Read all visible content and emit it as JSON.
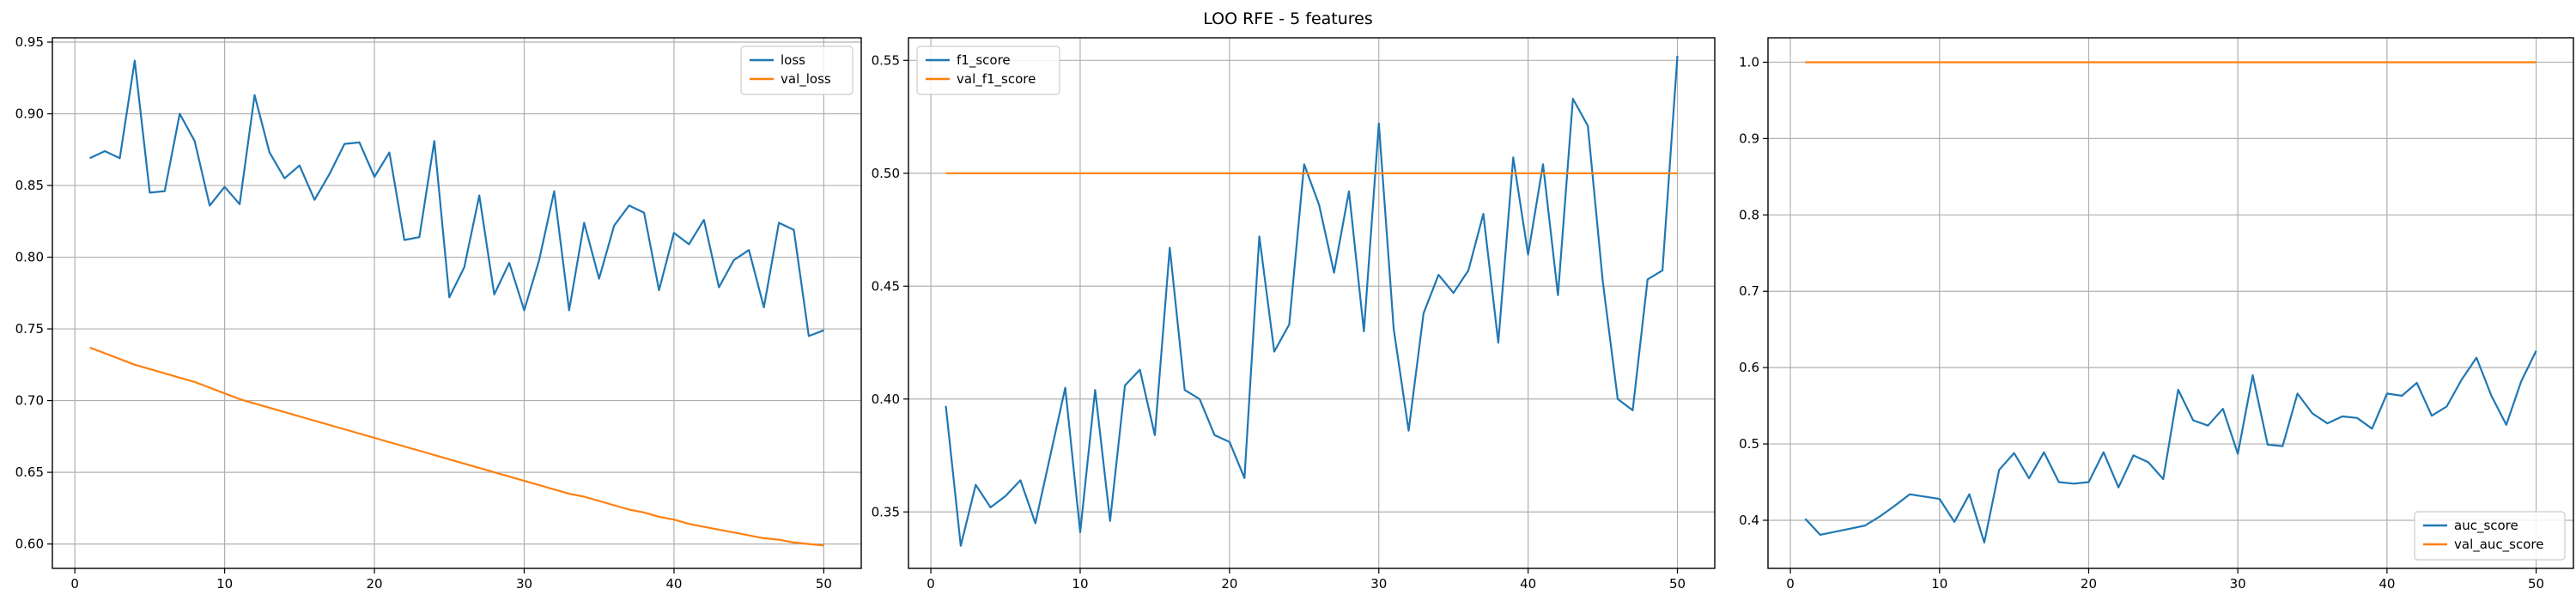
{
  "suptitle": "LOO RFE - 5 features",
  "colors": {
    "blue": "#1f77b4",
    "orange": "#ff7f0e",
    "grid": "#b0b0b0"
  },
  "chart_data": [
    {
      "type": "line",
      "title": "",
      "xlabel": "",
      "ylabel": "",
      "xlim": [
        -1.5,
        52.5
      ],
      "ylim": [
        0.583,
        0.953
      ],
      "xticks": [
        0,
        10,
        20,
        30,
        40,
        50
      ],
      "yticks": [
        0.6,
        0.65,
        0.7,
        0.75,
        0.8,
        0.85,
        0.9,
        0.95
      ],
      "ytick_labels": [
        "0.60",
        "0.65",
        "0.70",
        "0.75",
        "0.80",
        "0.85",
        "0.90",
        "0.95"
      ],
      "grid": true,
      "legend_position": "upper right",
      "x": [
        1,
        2,
        3,
        4,
        5,
        6,
        7,
        8,
        9,
        10,
        11,
        12,
        13,
        14,
        15,
        16,
        17,
        18,
        19,
        20,
        21,
        22,
        23,
        24,
        25,
        26,
        27,
        28,
        29,
        30,
        31,
        32,
        33,
        34,
        35,
        36,
        37,
        38,
        39,
        40,
        41,
        42,
        43,
        44,
        45,
        46,
        47,
        48,
        49,
        50
      ],
      "series": [
        {
          "name": "loss",
          "color": "#1f77b4",
          "values": [
            0.869,
            0.874,
            0.869,
            0.937,
            0.845,
            0.846,
            0.9,
            0.881,
            0.836,
            0.849,
            0.837,
            0.913,
            0.873,
            0.855,
            0.864,
            0.84,
            0.858,
            0.879,
            0.88,
            0.856,
            0.873,
            0.812,
            0.814,
            0.881,
            0.772,
            0.793,
            0.843,
            0.774,
            0.796,
            0.763,
            0.798,
            0.846,
            0.763,
            0.824,
            0.785,
            0.822,
            0.836,
            0.831,
            0.777,
            0.817,
            0.809,
            0.826,
            0.779,
            0.798,
            0.805,
            0.765,
            0.824,
            0.819,
            0.745,
            0.749
          ]
        },
        {
          "name": "val_loss",
          "color": "#ff7f0e",
          "values": [
            0.737,
            0.733,
            0.729,
            0.725,
            0.722,
            0.719,
            0.716,
            0.713,
            0.709,
            0.705,
            0.701,
            0.698,
            0.695,
            0.692,
            0.689,
            0.686,
            0.683,
            0.68,
            0.677,
            0.674,
            0.671,
            0.668,
            0.665,
            0.662,
            0.659,
            0.656,
            0.653,
            0.65,
            0.647,
            0.644,
            0.641,
            0.638,
            0.635,
            0.633,
            0.63,
            0.627,
            0.624,
            0.622,
            0.619,
            0.617,
            0.614,
            0.612,
            0.61,
            0.608,
            0.606,
            0.604,
            0.603,
            0.601,
            0.6,
            0.599
          ]
        }
      ]
    },
    {
      "type": "line",
      "title": "",
      "xlabel": "",
      "ylabel": "",
      "xlim": [
        -1.5,
        52.5
      ],
      "ylim": [
        0.325,
        0.56
      ],
      "xticks": [
        0,
        10,
        20,
        30,
        40,
        50
      ],
      "yticks": [
        0.35,
        0.4,
        0.45,
        0.5,
        0.55
      ],
      "ytick_labels": [
        "0.35",
        "0.40",
        "0.45",
        "0.50",
        "0.55"
      ],
      "grid": true,
      "legend_position": "upper left",
      "x": [
        1,
        2,
        3,
        4,
        5,
        6,
        7,
        8,
        9,
        10,
        11,
        12,
        13,
        14,
        15,
        16,
        17,
        18,
        19,
        20,
        21,
        22,
        23,
        24,
        25,
        26,
        27,
        28,
        29,
        30,
        31,
        32,
        33,
        34,
        35,
        36,
        37,
        38,
        39,
        40,
        41,
        42,
        43,
        44,
        45,
        46,
        47,
        48,
        49,
        50
      ],
      "series": [
        {
          "name": "f1_score",
          "color": "#1f77b4",
          "values": [
            0.397,
            0.335,
            0.362,
            0.352,
            0.357,
            0.364,
            0.345,
            0.375,
            0.405,
            0.341,
            0.404,
            0.346,
            0.406,
            0.413,
            0.384,
            0.467,
            0.404,
            0.4,
            0.384,
            0.381,
            0.365,
            0.472,
            0.421,
            0.433,
            0.504,
            0.486,
            0.456,
            0.492,
            0.43,
            0.522,
            0.431,
            0.386,
            0.438,
            0.455,
            0.447,
            0.457,
            0.482,
            0.425,
            0.507,
            0.464,
            0.504,
            0.446,
            0.533,
            0.521,
            0.452,
            0.4,
            0.395,
            0.453,
            0.457,
            0.552
          ]
        },
        {
          "name": "val_f1_score",
          "color": "#ff7f0e",
          "values": [
            0.5,
            0.5,
            0.5,
            0.5,
            0.5,
            0.5,
            0.5,
            0.5,
            0.5,
            0.5,
            0.5,
            0.5,
            0.5,
            0.5,
            0.5,
            0.5,
            0.5,
            0.5,
            0.5,
            0.5,
            0.5,
            0.5,
            0.5,
            0.5,
            0.5,
            0.5,
            0.5,
            0.5,
            0.5,
            0.5,
            0.5,
            0.5,
            0.5,
            0.5,
            0.5,
            0.5,
            0.5,
            0.5,
            0.5,
            0.5,
            0.5,
            0.5,
            0.5,
            0.5,
            0.5,
            0.5,
            0.5,
            0.5,
            0.5,
            0.5
          ]
        }
      ]
    },
    {
      "type": "line",
      "title": "",
      "xlabel": "",
      "ylabel": "",
      "xlim": [
        -1.5,
        52.5
      ],
      "ylim": [
        0.337,
        1.032
      ],
      "xticks": [
        0,
        10,
        20,
        30,
        40,
        50
      ],
      "yticks": [
        0.4,
        0.5,
        0.6,
        0.7,
        0.8,
        0.9,
        1.0
      ],
      "ytick_labels": [
        "0.4",
        "0.5",
        "0.6",
        "0.7",
        "0.8",
        "0.9",
        "1.0"
      ],
      "grid": true,
      "legend_position": "lower right",
      "x": [
        1,
        2,
        3,
        4,
        5,
        6,
        7,
        8,
        9,
        10,
        11,
        12,
        13,
        14,
        15,
        16,
        17,
        18,
        19,
        20,
        21,
        22,
        23,
        24,
        25,
        26,
        27,
        28,
        29,
        30,
        31,
        32,
        33,
        34,
        35,
        36,
        37,
        38,
        39,
        40,
        41,
        42,
        43,
        44,
        45,
        46,
        47,
        48,
        49,
        50
      ],
      "series": [
        {
          "name": "auc_score",
          "color": "#1f77b4",
          "values": [
            0.402,
            0.381,
            0.385,
            0.389,
            0.393,
            0.405,
            0.419,
            0.434,
            0.431,
            0.428,
            0.398,
            0.434,
            0.371,
            0.466,
            0.488,
            0.455,
            0.489,
            0.45,
            0.448,
            0.45,
            0.489,
            0.443,
            0.485,
            0.476,
            0.454,
            0.571,
            0.531,
            0.524,
            0.546,
            0.487,
            0.59,
            0.499,
            0.497,
            0.566,
            0.54,
            0.527,
            0.536,
            0.534,
            0.52,
            0.566,
            0.563,
            0.58,
            0.537,
            0.549,
            0.584,
            0.613,
            0.563,
            0.525,
            0.582,
            0.622
          ]
        },
        {
          "name": "val_auc_score",
          "color": "#ff7f0e",
          "values": [
            1.0,
            1.0,
            1.0,
            1.0,
            1.0,
            1.0,
            1.0,
            1.0,
            1.0,
            1.0,
            1.0,
            1.0,
            1.0,
            1.0,
            1.0,
            1.0,
            1.0,
            1.0,
            1.0,
            1.0,
            1.0,
            1.0,
            1.0,
            1.0,
            1.0,
            1.0,
            1.0,
            1.0,
            1.0,
            1.0,
            1.0,
            1.0,
            1.0,
            1.0,
            1.0,
            1.0,
            1.0,
            1.0,
            1.0,
            1.0,
            1.0,
            1.0,
            1.0,
            1.0,
            1.0,
            1.0,
            1.0,
            1.0,
            1.0,
            1.0
          ]
        }
      ]
    }
  ]
}
